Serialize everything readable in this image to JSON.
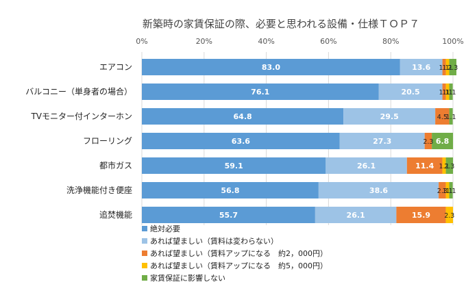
{
  "chart_data": {
    "type": "bar",
    "orientation": "horizontal",
    "stacked": true,
    "percent": true,
    "title": "新築時の家賃保証の際、必要と思われる設備・仕様ＴＯＰ７",
    "xlim": [
      0,
      100
    ],
    "x_ticks": [
      "0%",
      "20%",
      "40%",
      "60%",
      "80%",
      "100%"
    ],
    "grid": true,
    "legend_position": "bottom-left",
    "categories": [
      "エアコン",
      "バルコニー（単身者の場合）",
      "TVモニター付インターホン",
      "フローリング",
      "都市ガス",
      "洗浄機能付き便座",
      "追焚機能"
    ],
    "series": [
      {
        "name": "絶対必要",
        "color": "#5b9bd5",
        "values": [
          83.0,
          76.1,
          64.8,
          63.6,
          59.1,
          56.8,
          55.7
        ],
        "labels": [
          "83.0",
          "76.1",
          "64.8",
          "63.6",
          "59.1",
          "56.8",
          "55.7"
        ]
      },
      {
        "name": "あれば望ましい（賃料は変わらない）",
        "color": "#9dc3e6",
        "values": [
          13.6,
          20.5,
          29.5,
          27.3,
          26.1,
          38.6,
          26.1
        ],
        "labels": [
          "13.6",
          "20.5",
          "29.5",
          "27.3",
          "26.1",
          "38.6",
          "26.1"
        ]
      },
      {
        "name": "あれば望ましい（賃料アップになる　約2，000円）",
        "color": "#ed7d31",
        "values": [
          1.1,
          1.1,
          4.5,
          2.3,
          11.4,
          2.3,
          15.9
        ],
        "labels": [
          "1.1",
          "1.1",
          "4.5",
          "2.3",
          "11.4",
          "2.3",
          "15.9"
        ]
      },
      {
        "name": "あれば望ましい（賃料アップになる　約5，000円）",
        "color": "#ffc000",
        "values": [
          1.1,
          1.1,
          0,
          0,
          1.1,
          1.1,
          2.3
        ],
        "labels": [
          "1.1",
          "1.1",
          "",
          "",
          "1.1",
          "1.1",
          "2.3"
        ]
      },
      {
        "name": "家賃保証に影響しない",
        "color": "#70ad47",
        "values": [
          2.3,
          1.1,
          1.1,
          6.8,
          2.3,
          1.1,
          0
        ],
        "labels": [
          "2.3",
          "1.1",
          "1.1",
          "6.8",
          "2.3",
          "1.1",
          ""
        ]
      }
    ]
  }
}
